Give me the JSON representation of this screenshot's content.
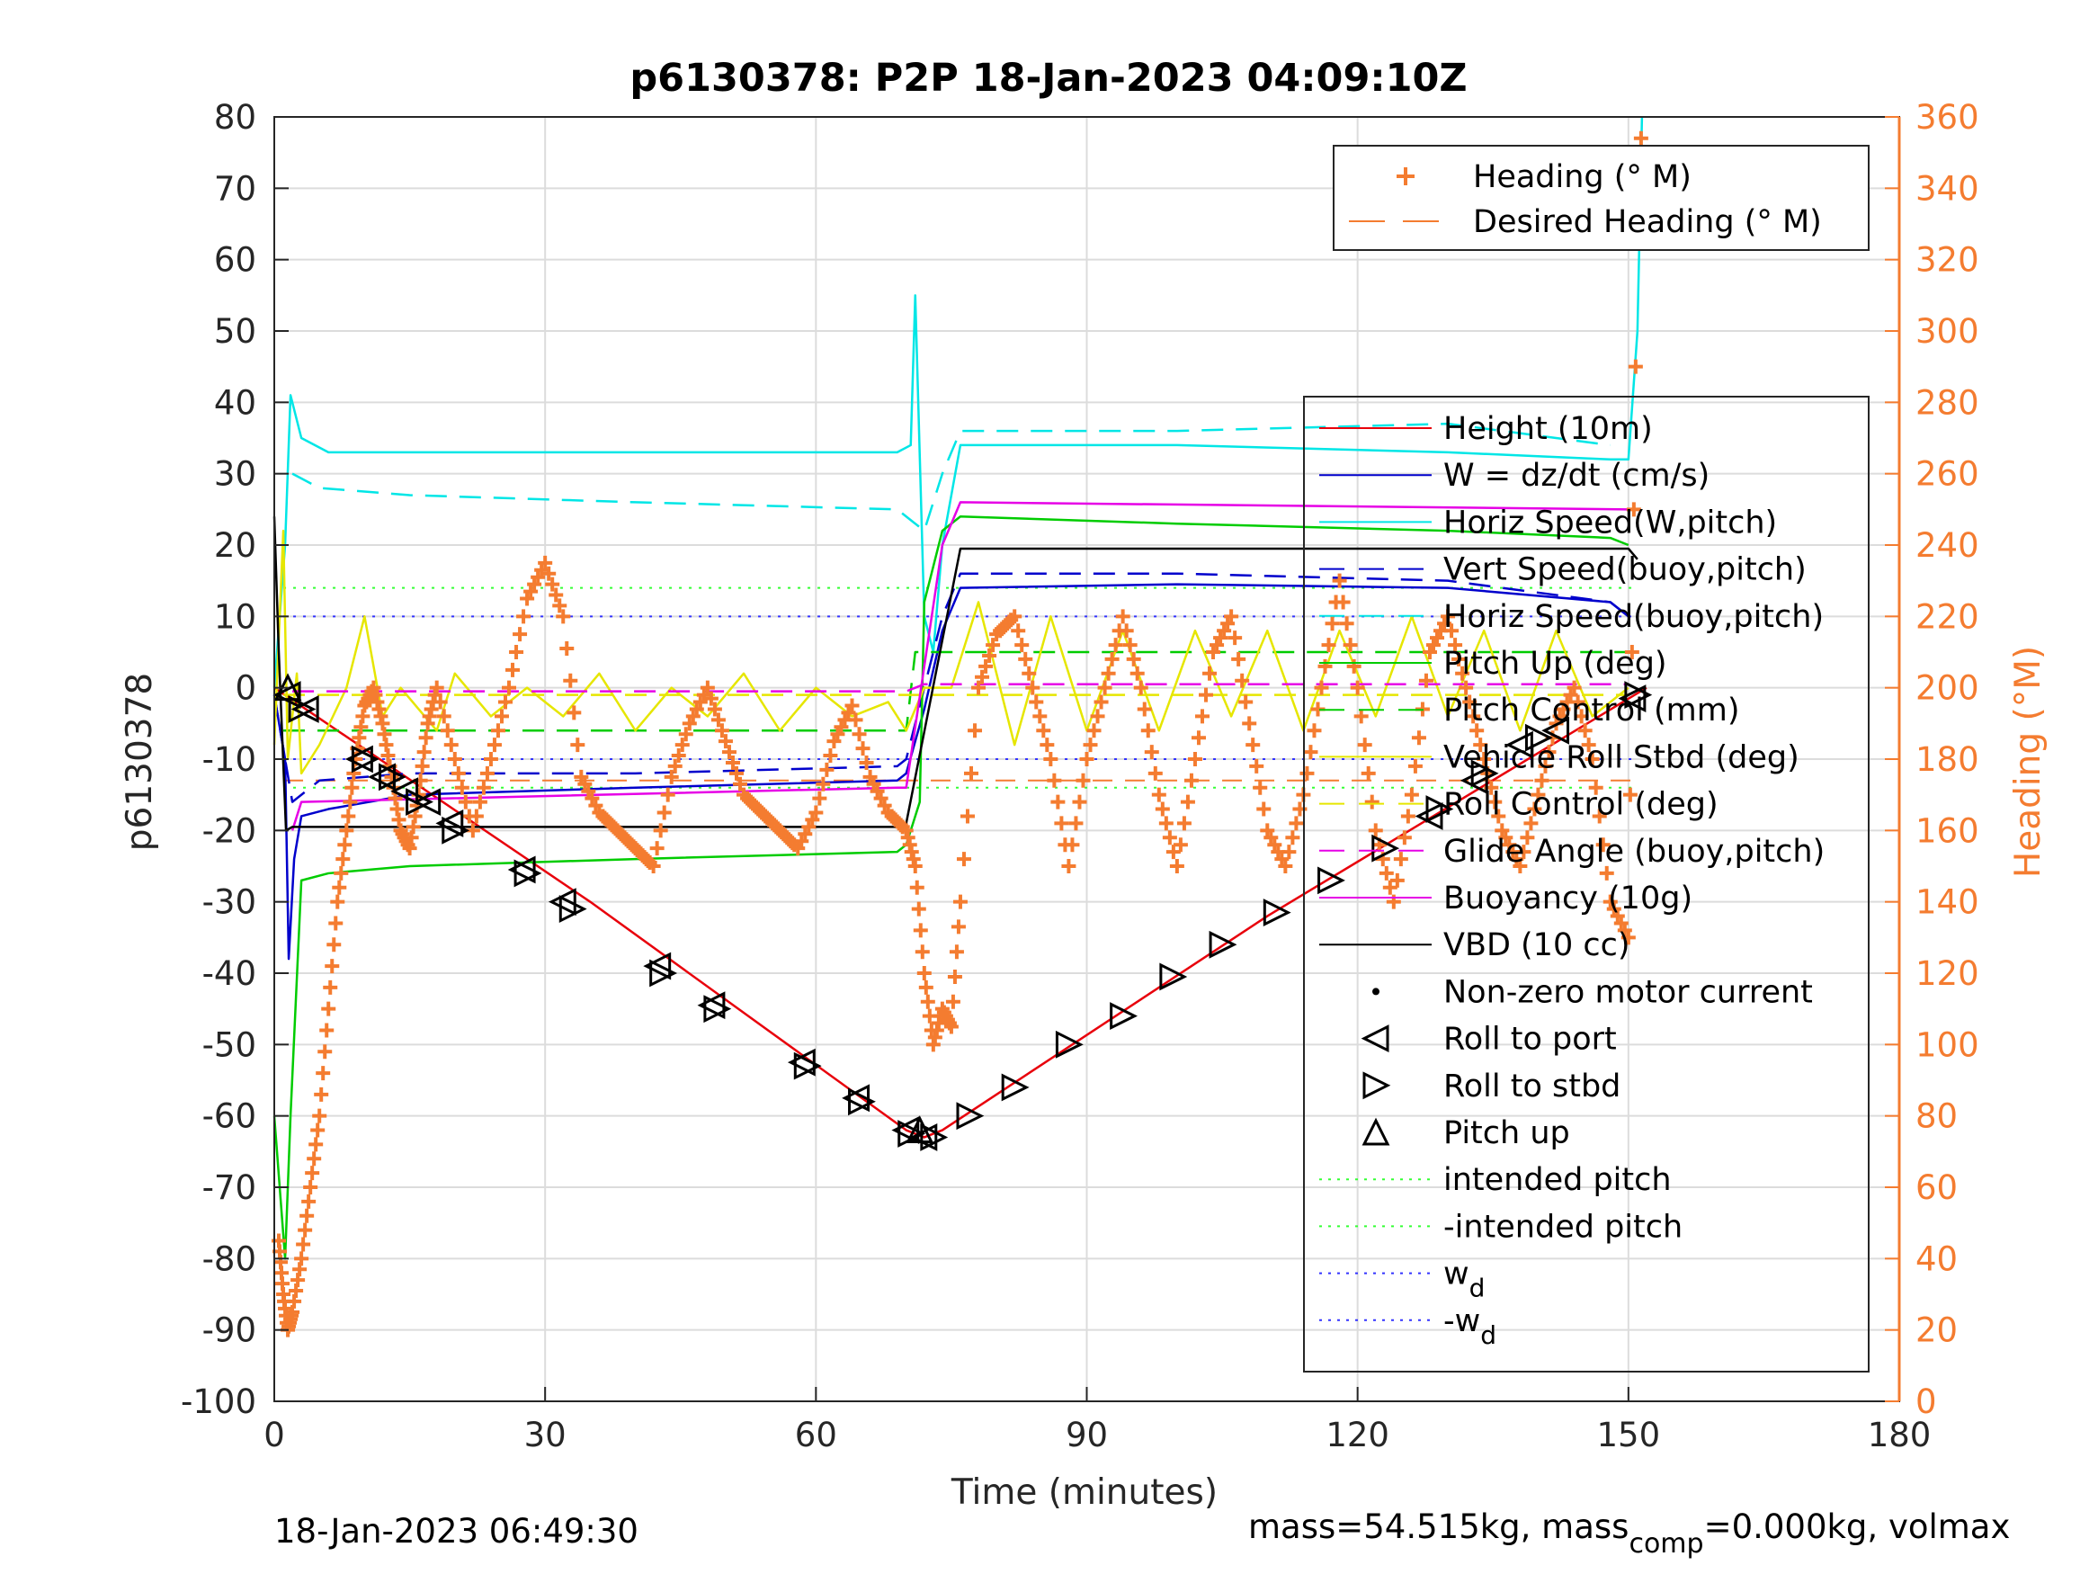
{
  "chart_data": {
    "type": "line",
    "title": "p6130378: P2P 18-Jan-2023 04:09:10Z",
    "xlabel": "Time (minutes)",
    "ylabel": "p6130378",
    "y2label": "Heading (°M)",
    "xlim": [
      0,
      180
    ],
    "ylim": [
      -100,
      80
    ],
    "y2lim": [
      0,
      360
    ],
    "xticks": [
      "0",
      "30",
      "60",
      "90",
      "120",
      "150",
      "180"
    ],
    "yticks": [
      "80",
      "70",
      "60",
      "50",
      "40",
      "30",
      "20",
      "10",
      "0",
      "-10",
      "-20",
      "-30",
      "-40",
      "-50",
      "-60",
      "-70",
      "-80",
      "-90",
      "-100"
    ],
    "y2ticks": [
      "360",
      "340",
      "320",
      "300",
      "280",
      "260",
      "240",
      "220",
      "200",
      "180",
      "160",
      "140",
      "120",
      "100",
      "80",
      "60",
      "40",
      "20",
      "0"
    ],
    "grid": true,
    "footer_left": "18-Jan-2023 06:49:30",
    "footer_right_parts": [
      "mass=54.515kg, mass",
      "comp",
      "=0.000kg, volmax"
    ],
    "legend_heading": {
      "placement": "top-right",
      "entries": [
        {
          "label": "Heading (° M)",
          "color": "#f47c30",
          "style": "plus"
        },
        {
          "label": "Desired Heading (° M)",
          "color": "#f47c30",
          "style": "dash"
        }
      ]
    },
    "legend_main": {
      "placement": "right",
      "entries": [
        {
          "label": "Height (10m)",
          "color": "#e8000b",
          "style": "solid"
        },
        {
          "label": "W = dz/dt (cm/s)",
          "color": "#0000cc",
          "style": "solid"
        },
        {
          "label": "Horiz Speed(W,pitch)",
          "color": "#00e6e6",
          "style": "solid"
        },
        {
          "label": "Vert Speed(buoy,pitch)",
          "color": "#0000cc",
          "style": "dash"
        },
        {
          "label": "Horiz Speed(buoy,pitch)",
          "color": "#00e6e6",
          "style": "dash"
        },
        {
          "label": "Pitch Up (deg)",
          "color": "#00cc00",
          "style": "solid"
        },
        {
          "label": "Pitch Control (mm)",
          "color": "#00cc00",
          "style": "dash"
        },
        {
          "label": "Vehicle Roll Stbd (deg)",
          "color": "#e6e600",
          "style": "solid"
        },
        {
          "label": "Roll Control (deg)",
          "color": "#e6e600",
          "style": "dash"
        },
        {
          "label": "Glide Angle (buoy,pitch)",
          "color": "#e600e6",
          "style": "dash"
        },
        {
          "label": "Buoyancy (10g)",
          "color": "#e600e6",
          "style": "solid"
        },
        {
          "label": "VBD (10 cc)",
          "color": "#000000",
          "style": "solid"
        },
        {
          "label": "Non-zero motor current",
          "color": "#000000",
          "style": "dot"
        },
        {
          "label": "Roll to port",
          "color": "#000000",
          "style": "tri-left"
        },
        {
          "label": "Roll to stbd",
          "color": "#000000",
          "style": "tri-right"
        },
        {
          "label": "Pitch up",
          "color": "#000000",
          "style": "tri-up"
        },
        {
          "label": "intended pitch",
          "color": "#33ff33",
          "style": "dotted"
        },
        {
          "label": "-intended pitch",
          "color": "#33ff33",
          "style": "dotted"
        },
        {
          "label": "w",
          "sub": "d",
          "color": "#3333ff",
          "style": "dotted"
        },
        {
          "label": "-w",
          "sub": "d",
          "color": "#3333ff",
          "style": "dotted"
        }
      ]
    },
    "series": [
      {
        "name": "Height (10m)",
        "color": "#e8000b",
        "x": [
          0,
          35,
          70,
          72,
          74,
          110,
          152
        ],
        "y": [
          0,
          -30,
          -62,
          -63,
          -62,
          -32,
          0
        ]
      },
      {
        "name": "W = dz/dt (cm/s)",
        "color": "#0000cc",
        "x": [
          0,
          1.2,
          1.6,
          2.2,
          3,
          6,
          15,
          40,
          69,
          70,
          72,
          74,
          76,
          100,
          130,
          148,
          150
        ],
        "y": [
          -1,
          -10,
          -38,
          -24,
          -18,
          -17,
          -15,
          -14,
          -13,
          -12,
          -3,
          8,
          14,
          14.5,
          14,
          12,
          10
        ]
      },
      {
        "name": "Horiz Speed(W,pitch)",
        "color": "#00e6e6",
        "x": [
          0,
          1.2,
          1.8,
          3,
          6,
          15,
          40,
          69,
          70.5,
          71,
          72,
          73,
          74,
          76,
          100,
          130,
          148,
          150,
          151,
          151.5
        ],
        "y": [
          0,
          20,
          41,
          35,
          33,
          33,
          33,
          33,
          34,
          55,
          10,
          5,
          20,
          34,
          34,
          33,
          32,
          32,
          50,
          80
        ]
      },
      {
        "name": "Vert Speed(buoy,pitch)",
        "color": "#0000cc",
        "x": [
          0,
          2,
          5,
          15,
          40,
          69,
          70,
          72,
          74,
          76,
          100,
          130,
          148,
          150
        ],
        "y": [
          -1,
          -16,
          -13,
          -12,
          -12,
          -11,
          -10,
          0,
          10,
          16,
          16,
          15,
          12,
          10
        ]
      },
      {
        "name": "Horiz Speed(buoy,pitch)",
        "color": "#00e6e6",
        "x": [
          2,
          5,
          15,
          40,
          69,
          72,
          74,
          76,
          100,
          130,
          148
        ],
        "y": [
          30,
          28,
          27,
          26,
          25,
          22,
          30,
          36,
          36,
          37,
          34
        ]
      },
      {
        "name": "Pitch Up (deg)",
        "color": "#00cc00",
        "x": [
          0,
          1.2,
          1.8,
          3,
          6,
          15,
          40,
          69,
          70,
          71.5,
          72,
          74,
          76,
          100,
          130,
          148,
          150
        ],
        "y": [
          -60,
          -80,
          -60,
          -27,
          -26,
          -25,
          -24,
          -23,
          -22,
          -16,
          12,
          22,
          24,
          23,
          22,
          21,
          20
        ]
      },
      {
        "name": "Pitch Control (mm)",
        "color": "#00cc00",
        "x": [
          1,
          70,
          71,
          150
        ],
        "y": [
          -6,
          -6,
          5,
          5
        ]
      },
      {
        "name": "Vehicle Roll Stbd (deg)",
        "color": "#e6e600",
        "x": [
          0,
          1,
          1.5,
          2.5,
          3,
          5,
          8,
          10,
          12,
          14,
          18,
          20,
          24,
          28,
          32,
          36,
          40,
          44,
          48,
          52,
          56,
          60,
          64,
          68,
          70,
          72,
          75,
          78,
          82,
          86,
          90,
          94,
          98,
          102,
          106,
          110,
          114,
          118,
          122,
          126,
          130,
          134,
          138,
          142,
          146,
          150
        ],
        "y": [
          -8,
          22,
          -10,
          2,
          -12,
          -8,
          0,
          10,
          -4,
          0,
          -6,
          2,
          -4,
          0,
          -4,
          2,
          -6,
          0,
          -4,
          2,
          -6,
          0,
          -4,
          -2,
          -6,
          0,
          0,
          12,
          -8,
          10,
          -6,
          8,
          -6,
          8,
          -4,
          8,
          -6,
          8,
          -4,
          10,
          -4,
          8,
          -6,
          8,
          -4,
          0
        ]
      },
      {
        "name": "Roll Control (deg)",
        "color": "#e6e600",
        "x": [
          1,
          150
        ],
        "y": [
          -1,
          -1
        ]
      },
      {
        "name": "Glide Angle (buoy,pitch)",
        "color": "#e600e6",
        "x": [
          2,
          70,
          72,
          150
        ],
        "y": [
          -0.5,
          -0.5,
          0.5,
          0.5
        ]
      },
      {
        "name": "Buoyancy (10g)",
        "color": "#e600e6",
        "x": [
          2,
          3,
          69,
          70,
          74,
          76,
          150
        ],
        "y": [
          -20,
          -16,
          -14,
          -14,
          20,
          26,
          25
        ]
      },
      {
        "name": "VBD (10 cc)",
        "color": "#000000",
        "x": [
          0,
          0.5,
          1.3,
          2,
          69,
          70,
          76,
          150,
          151
        ],
        "y": [
          24,
          5,
          -20,
          -19.5,
          -19.5,
          -19,
          19.5,
          19.5,
          18
        ]
      },
      {
        "name": "Heading (° M)",
        "color": "#f47c30",
        "axis": "right",
        "x": [
          0.5,
          1,
          1.5,
          2,
          3,
          4,
          5,
          6,
          7,
          8,
          9,
          10,
          11,
          12,
          13,
          14,
          15,
          16,
          17,
          18,
          20,
          22,
          24,
          26,
          28,
          30,
          32,
          34,
          36,
          38,
          40,
          42,
          44,
          46,
          48,
          50,
          52,
          54,
          56,
          58,
          60,
          62,
          64,
          66,
          68,
          70,
          71,
          72,
          73,
          74,
          75,
          76,
          78,
          80,
          82,
          84,
          86,
          88,
          90,
          92,
          94,
          96,
          98,
          100,
          102,
          104,
          106,
          108,
          110,
          112,
          114,
          116,
          118,
          120,
          122,
          124,
          126,
          128,
          130,
          132,
          134,
          136,
          138,
          140,
          142,
          144,
          146,
          148,
          150,
          151,
          151.5
        ],
        "y": [
          45,
          30,
          20,
          25,
          40,
          60,
          80,
          110,
          140,
          160,
          180,
          195,
          200,
          190,
          175,
          160,
          155,
          170,
          190,
          200,
          180,
          160,
          180,
          200,
          225,
          235,
          220,
          175,
          165,
          160,
          155,
          150,
          175,
          190,
          200,
          185,
          170,
          165,
          160,
          155,
          165,
          185,
          195,
          175,
          165,
          160,
          150,
          120,
          100,
          110,
          105,
          140,
          200,
          215,
          220,
          200,
          180,
          150,
          180,
          200,
          220,
          200,
          170,
          150,
          180,
          210,
          220,
          190,
          160,
          150,
          170,
          200,
          230,
          200,
          160,
          140,
          170,
          210,
          220,
          200,
          180,
          160,
          150,
          170,
          190,
          200,
          180,
          140,
          130,
          330,
          360
        ]
      }
    ],
    "markers": {
      "roll_to_port": {
        "x": [
          1.5,
          3.5,
          9.5,
          12,
          14.5,
          17,
          19.5,
          27.5,
          32,
          42.5,
          48.5,
          58.5,
          64.5,
          70,
          72,
          128,
          133,
          138,
          142,
          150.5
        ],
        "y": [
          -1,
          -3,
          -10,
          -12.5,
          -14.5,
          -16,
          -19,
          -25.5,
          -30,
          -39,
          -44.5,
          -52.5,
          -57.5,
          -62,
          -63,
          -18,
          -13,
          -8,
          -6,
          -1.5
        ]
      },
      "roll_to_stbd": {
        "x": [
          3,
          10,
          13,
          16,
          20,
          28,
          33,
          43,
          49,
          59,
          65,
          70.5,
          73,
          77,
          82,
          88,
          94,
          99.5,
          105,
          111,
          117,
          123,
          129,
          134,
          140,
          151
        ],
        "y": [
          -3,
          -10,
          -12.5,
          -16,
          -20,
          -26,
          -31,
          -40,
          -45,
          -53,
          -58,
          -62.5,
          -63,
          -60,
          -56,
          -50,
          -46,
          -40.5,
          -36,
          -31.5,
          -27,
          -22.5,
          -17,
          -12,
          -7,
          -1
        ]
      },
      "pitch_up": {
        "x": [
          1.5,
          71.5
        ],
        "y": [
          0,
          -62
        ]
      }
    },
    "reference_lines": [
      {
        "name": "intended pitch",
        "color": "#33ff33",
        "y": 14
      },
      {
        "name": "-intended pitch",
        "color": "#33ff33",
        "y": -14
      },
      {
        "name": "w_d",
        "color": "#3333ff",
        "y": 10
      },
      {
        "name": "-w_d",
        "color": "#3333ff",
        "y": -10
      },
      {
        "name": "Desired Heading (° M)",
        "color": "#f47c30",
        "y2": 174
      }
    ]
  }
}
